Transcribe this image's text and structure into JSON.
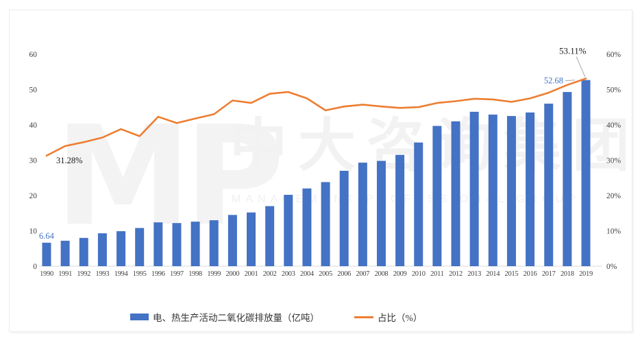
{
  "watermark": {
    "logo": "MP",
    "cn": "中大咨询集团",
    "en": "MANAGEMENT PROFESSIONAL GROUP"
  },
  "colors": {
    "bar": "#4472C4",
    "line": "#ED7D31",
    "axis_text": "#404040",
    "axis_line": "#d9d9d9",
    "annotation_dark": "#1a1a1a",
    "leader_line": "#a6a6a6"
  },
  "chart_data": {
    "type": "bar",
    "subtype": "bar-line-combo",
    "title": "",
    "categories": [
      "1990",
      "1991",
      "1992",
      "1993",
      "1994",
      "1995",
      "1996",
      "1997",
      "1998",
      "1999",
      "2000",
      "2001",
      "2002",
      "2003",
      "2004",
      "2005",
      "2006",
      "2007",
      "2008",
      "2009",
      "2010",
      "2011",
      "2012",
      "2013",
      "2014",
      "2015",
      "2016",
      "2017",
      "2018",
      "2019"
    ],
    "series": [
      {
        "name": "电、热生产活动二氧化碳排放量（亿吨）",
        "type": "bar",
        "axis": "left",
        "color": "#4472C4",
        "values": [
          6.64,
          7.2,
          8.0,
          9.3,
          9.9,
          10.8,
          12.4,
          12.2,
          12.6,
          13.0,
          14.5,
          15.2,
          17.0,
          20.2,
          22.0,
          23.8,
          27.0,
          29.3,
          29.8,
          31.5,
          35.0,
          39.7,
          41.0,
          43.7,
          42.9,
          42.5,
          43.5,
          46.0,
          49.3,
          52.68
        ]
      },
      {
        "name": "占比（%）",
        "type": "line",
        "axis": "right",
        "color": "#ED7D31",
        "values": [
          31.28,
          34.0,
          35.1,
          36.4,
          38.8,
          36.8,
          42.3,
          40.5,
          41.8,
          43.0,
          46.9,
          46.2,
          48.8,
          49.3,
          47.5,
          44.1,
          45.2,
          45.7,
          45.2,
          44.8,
          45.0,
          46.2,
          46.7,
          47.4,
          47.2,
          46.5,
          47.5,
          49.1,
          51.3,
          53.11
        ]
      }
    ],
    "left_axis": {
      "min": 0,
      "max": 60,
      "step": 10,
      "ticks": [
        "0",
        "10",
        "20",
        "30",
        "40",
        "50",
        "60"
      ]
    },
    "right_axis": {
      "min": 0,
      "max": 60,
      "step": 10,
      "ticks": [
        "0%",
        "10%",
        "20%",
        "30%",
        "40%",
        "50%",
        "60%"
      ]
    },
    "grid": false,
    "legend_position": "bottom",
    "annotations": [
      {
        "id": "bar-first",
        "text": "6.64",
        "series": "bar",
        "year": "1990",
        "color": "#4472C4"
      },
      {
        "id": "line-first",
        "text": "31.28%",
        "series": "line",
        "year": "1990",
        "color": "#1a1a1a"
      },
      {
        "id": "bar-last",
        "text": "52.68",
        "series": "bar",
        "year": "2019",
        "color": "#4472C4"
      },
      {
        "id": "line-last",
        "text": "53.11%",
        "series": "line",
        "year": "2019",
        "color": "#1a1a1a"
      }
    ],
    "legend": [
      {
        "label": "电、热生产活动二氧化碳排放量（亿吨）",
        "marker": "bar",
        "color": "#4472C4"
      },
      {
        "label": "占比（%）",
        "marker": "line",
        "color": "#ED7D31"
      }
    ]
  }
}
